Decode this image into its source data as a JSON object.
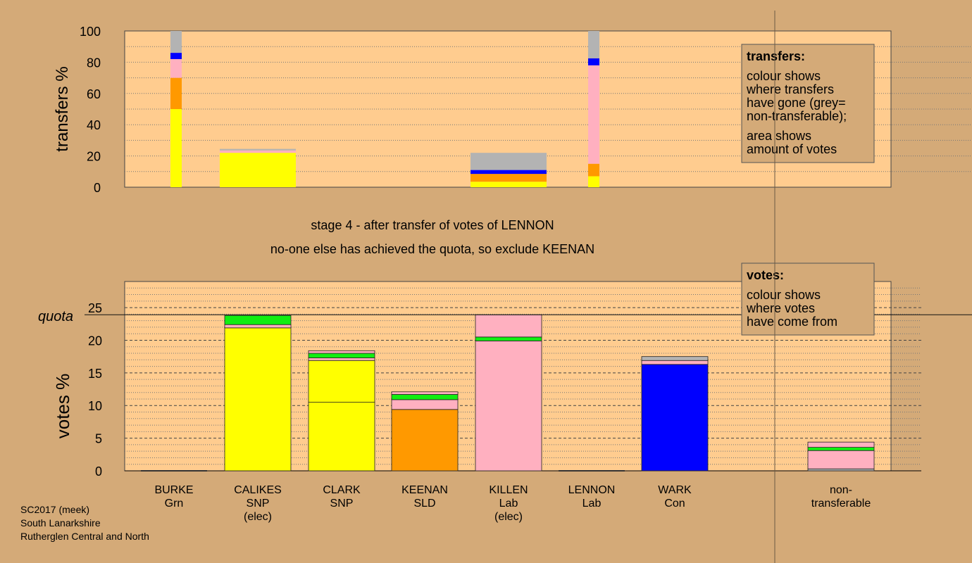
{
  "title_lines": [
    "stage 4 - after transfer of votes of LENNON",
    "no-one else has achieved the quota, so exclude KEENAN"
  ],
  "footer": [
    "SC2017 (meek)",
    "South Lanarkshire",
    "Rutherglen Central and North"
  ],
  "legend_transfers": {
    "title": "transfers:",
    "lines": [
      "colour shows",
      "where transfers",
      "have gone (grey=",
      "non-transferable);"
    ],
    "lines2": [
      "area shows",
      "amount of votes"
    ]
  },
  "legend_votes": {
    "title": "votes:",
    "lines": [
      "colour shows",
      "where votes",
      "have come from"
    ]
  },
  "colors": {
    "background": "#d4aa78",
    "plot_bg": "#ffcc8f",
    "SNP": "#ffff00",
    "SLD": "#ff9900",
    "Lab": "#ffb0c0",
    "Con": "#0000ff",
    "Grn": "#11ee11",
    "nontransferable": "#b3b3b3"
  },
  "chart_data": [
    {
      "type": "bar",
      "name": "transfers",
      "ylabel": "transfers %",
      "ylim": [
        0,
        100
      ],
      "yticks": [
        0,
        20,
        40,
        60,
        80,
        100
      ],
      "bars": [
        {
          "candidate": "BURKE",
          "slot": 0,
          "width": "narrow",
          "segments": [
            {
              "party": "SNP",
              "value": 50
            },
            {
              "party": "SLD",
              "value": 20
            },
            {
              "party": "Lab",
              "value": 12
            },
            {
              "party": "Con",
              "value": 4
            },
            {
              "party": "nontransferable",
              "value": 14
            }
          ]
        },
        {
          "candidate": "CALIKES",
          "slot": 1,
          "width": "wide",
          "segments": [
            {
              "party": "SNP",
              "value": 22
            },
            {
              "party": "Lab",
              "value": 1.5
            },
            {
              "party": "nontransferable",
              "value": 1.0
            }
          ]
        },
        {
          "candidate": "KILLEN",
          "slot": 4,
          "width": "wide",
          "segments": [
            {
              "party": "SNP",
              "value": 3.5
            },
            {
              "party": "SLD",
              "value": 5
            },
            {
              "party": "Con",
              "value": 2.5
            },
            {
              "party": "nontransferable",
              "value": 11
            }
          ]
        },
        {
          "candidate": "LENNON",
          "slot": 5,
          "width": "narrow",
          "segments": [
            {
              "party": "SNP",
              "value": 7
            },
            {
              "party": "SLD",
              "value": 8
            },
            {
              "party": "Lab",
              "value": 63
            },
            {
              "party": "Con",
              "value": 4.5
            },
            {
              "party": "nontransferable",
              "value": 17.5
            }
          ]
        }
      ]
    },
    {
      "type": "bar",
      "name": "votes",
      "ylabel": "votes %",
      "ylim": [
        0,
        29
      ],
      "yticks": [
        0,
        5,
        10,
        15,
        20,
        25
      ],
      "quota": 23.9,
      "quota_label": "quota",
      "categories": [
        {
          "name": "BURKE",
          "party": "Grn",
          "note": ""
        },
        {
          "name": "CALIKES",
          "party": "SNP",
          "note": "(elec)"
        },
        {
          "name": "CLARK",
          "party": "SNP",
          "note": ""
        },
        {
          "name": "KEENAN",
          "party": "SLD",
          "note": ""
        },
        {
          "name": "KILLEN",
          "party": "Lab",
          "note": "(elec)"
        },
        {
          "name": "LENNON",
          "party": "Lab",
          "note": ""
        },
        {
          "name": "WARK",
          "party": "Con",
          "note": ""
        },
        {
          "name": "",
          "party": "",
          "note": ""
        },
        {
          "name": "non-",
          "party": "transferable",
          "note": ""
        }
      ],
      "bars": [
        {
          "slot": 0,
          "segments": []
        },
        {
          "slot": 1,
          "segments": [
            {
              "party": "SNP",
              "value": 21.9
            },
            {
              "party": "Lab",
              "value": 0.5
            },
            {
              "party": "Grn",
              "value": 1.4
            }
          ]
        },
        {
          "slot": 2,
          "segments": [
            {
              "party": "SNP",
              "value": 10.5
            },
            {
              "party": "SNP",
              "value": 6.4
            },
            {
              "party": "Lab",
              "value": 0.4
            },
            {
              "party": "Grn",
              "value": 0.7
            },
            {
              "party": "Lab",
              "value": 0.4
            }
          ]
        },
        {
          "slot": 3,
          "segments": [
            {
              "party": "SLD",
              "value": 9.4
            },
            {
              "party": "Lab",
              "value": 1.5
            },
            {
              "party": "Grn",
              "value": 0.8
            },
            {
              "party": "Lab",
              "value": 0.4
            }
          ]
        },
        {
          "slot": 4,
          "segments": [
            {
              "party": "Lab",
              "value": 19.9
            },
            {
              "party": "Grn",
              "value": 0.6
            },
            {
              "party": "Lab",
              "value": 3.4
            }
          ]
        },
        {
          "slot": 5,
          "segments": []
        },
        {
          "slot": 6,
          "segments": [
            {
              "party": "Con",
              "value": 16.3
            },
            {
              "party": "Lab",
              "value": 0.6
            },
            {
              "party": "nontransferable",
              "value": 0.6
            }
          ]
        },
        {
          "slot": 8,
          "segments": [
            {
              "party": "nontransferable",
              "value": 0.3
            },
            {
              "party": "Lab",
              "value": 2.8
            },
            {
              "party": "Grn",
              "value": 0.5
            },
            {
              "party": "Lab",
              "value": 0.8
            }
          ]
        }
      ]
    }
  ]
}
